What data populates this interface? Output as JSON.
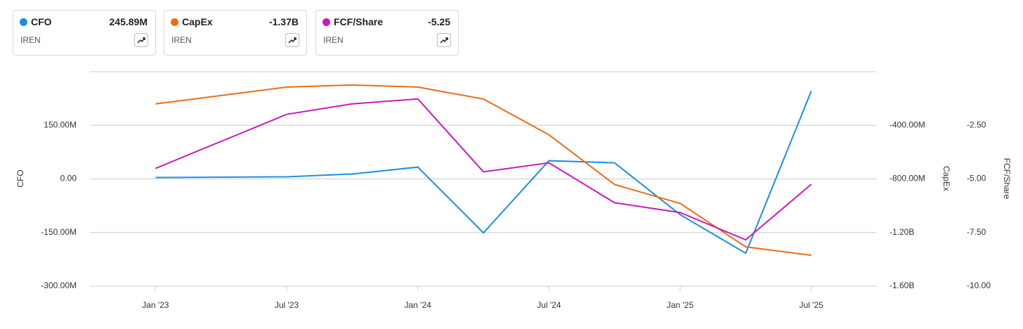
{
  "chart_data": {
    "type": "line",
    "x": [
      "2023-01",
      "2023-07",
      "2023-10",
      "2024-01",
      "2024-04",
      "2024-07",
      "2024-10",
      "2025-01",
      "2025-04",
      "2025-07"
    ],
    "xticks": [
      {
        "value": "2023-01",
        "label": "Jan '23"
      },
      {
        "value": "2023-07",
        "label": "Jul '23"
      },
      {
        "value": "2024-01",
        "label": "Jan '24"
      },
      {
        "value": "2024-07",
        "label": "Jul '24"
      },
      {
        "value": "2025-01",
        "label": "Jan '25"
      },
      {
        "value": "2025-07",
        "label": "Jul '25"
      }
    ],
    "xlim": [
      "2022-10",
      "2025-10"
    ],
    "ylabel": "CFO",
    "ylim": [
      -300000000,
      300000000
    ],
    "yticks": [
      {
        "value": 150000000,
        "label": "150.00M"
      },
      {
        "value": 0,
        "label": "0.00"
      },
      {
        "value": -150000000,
        "label": "-150.00M"
      },
      {
        "value": -300000000,
        "label": "-300.00M"
      }
    ],
    "y2label": "CapEx",
    "y2lim": [
      -1600000000,
      0
    ],
    "y2ticks": [
      {
        "value": -400000000,
        "label": "-400.00M"
      },
      {
        "value": -800000000,
        "label": "-800.00M"
      },
      {
        "value": -1200000000,
        "label": "-1.20B"
      },
      {
        "value": -1600000000,
        "label": "-1.60B"
      }
    ],
    "y3label": "FCF/Share",
    "y3lim": [
      -10,
      0
    ],
    "y3ticks": [
      {
        "value": -2.5,
        "label": "-2.50"
      },
      {
        "value": -5,
        "label": "-5.00"
      },
      {
        "value": -7.5,
        "label": "-7.50"
      },
      {
        "value": -10,
        "label": "-10.00"
      }
    ],
    "grid": true,
    "series": [
      {
        "name": "CFO",
        "ticker": "IREN",
        "latest_label": "245.89M",
        "color": "#1a8fe8",
        "axis": "y",
        "values": [
          3900000,
          5900000,
          13700000,
          33000000,
          -151000000,
          51000000,
          45000000,
          -100000000,
          -208000000,
          245890000
        ]
      },
      {
        "name": "CapEx",
        "ticker": "IREN",
        "latest_label": "-1.37B",
        "color": "#ef6c13",
        "axis": "y2",
        "values": [
          -240000000,
          -115000000,
          -99000000,
          -115000000,
          -204000000,
          -471000000,
          -842000000,
          -983000000,
          -1307000000,
          -1370000000
        ]
      },
      {
        "name": "FCF/Share",
        "ticker": "IREN",
        "latest_label": "-5.25",
        "color": "#c918c0",
        "axis": "y3",
        "values": [
          -4.51,
          -1.99,
          -1.5,
          -1.27,
          -4.67,
          -4.25,
          -6.11,
          -6.57,
          -7.84,
          -5.25
        ]
      }
    ]
  }
}
